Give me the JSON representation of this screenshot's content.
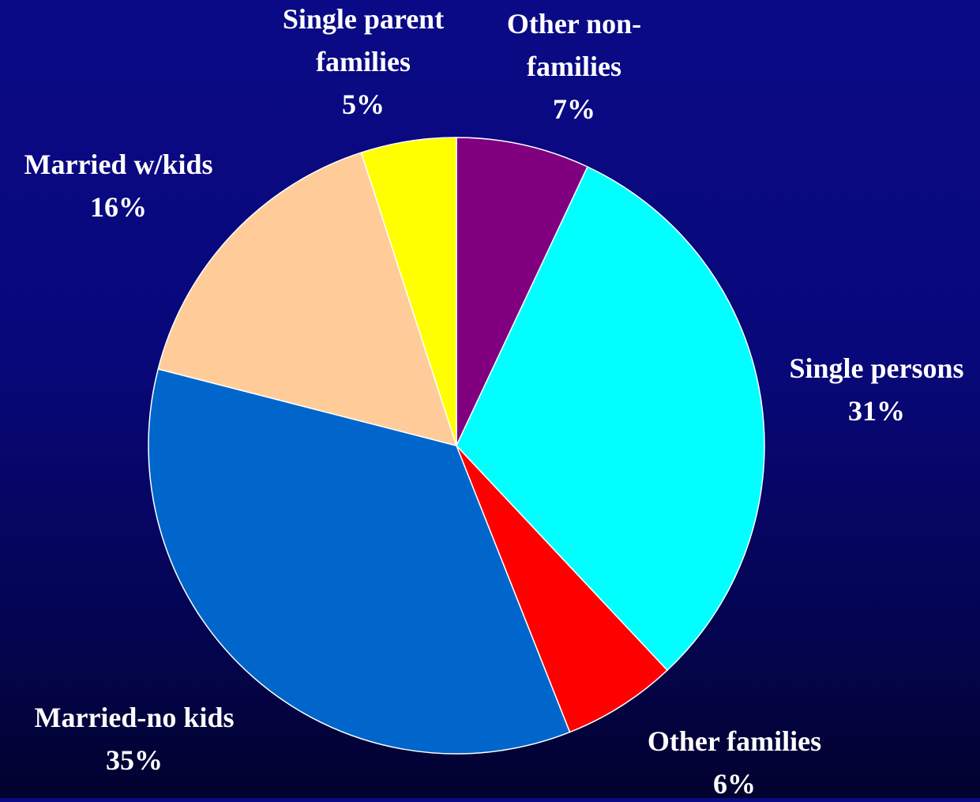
{
  "chart_data": {
    "type": "pie",
    "start": "top",
    "direction": "clockwise",
    "slices": [
      {
        "label_lines": [
          "Other non-",
          "families"
        ],
        "value": 7,
        "value_label": "7%",
        "color": "#800080"
      },
      {
        "label_lines": [
          "Single persons"
        ],
        "value": 31,
        "value_label": "31%",
        "color": "#00ffff"
      },
      {
        "label_lines": [
          "Other families"
        ],
        "value": 6,
        "value_label": "6%",
        "color": "#ff0000"
      },
      {
        "label_lines": [
          "Married-no kids"
        ],
        "value": 35,
        "value_label": "35%",
        "color": "#0066cc"
      },
      {
        "label_lines": [
          "Married w/kids"
        ],
        "value": 16,
        "value_label": "16%",
        "color": "#ffcc99"
      },
      {
        "label_lines": [
          "Single parent",
          "families"
        ],
        "value": 5,
        "value_label": "5%",
        "color": "#ffff00"
      }
    ],
    "slice_border_color": "#ffffff",
    "label_color": "#ffffff",
    "background_color": "#08087a"
  }
}
